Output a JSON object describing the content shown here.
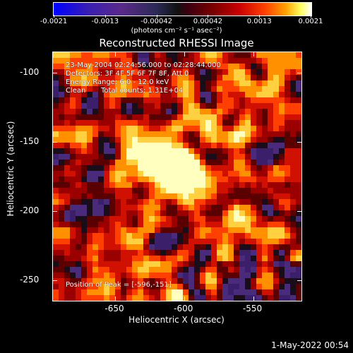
{
  "colorbar": {
    "ticks": [
      "-0.0021",
      "-0.0013",
      "-0.00042",
      "0.00042",
      "0.0013",
      "0.0021"
    ],
    "units_label": "(photons cm⁻² s⁻¹ asec⁻²)"
  },
  "title": "Reconstructed RHESSI Image",
  "annotations": {
    "time": "23-May-2004 02:24:56.000 to 02:28:44.000",
    "detectors": "Detectors: 3F 4F 5F 6F 7F 8F, Att 0",
    "energy": "Energy Range: 6.0 - 12.0 keV",
    "method": "Clean",
    "counts": "Total counts: 1.31E+04",
    "peak": "Position of Peak = [-596,-151]"
  },
  "axes": {
    "xlabel": "Heliocentric X (arcsec)",
    "ylabel": "Heliocentric Y (arcsec)",
    "xticks": [
      "-650",
      "-600",
      "-550"
    ],
    "yticks": [
      "-100",
      "-150",
      "-200",
      "-250"
    ],
    "xrange": [
      -695,
      -515
    ],
    "yrange": [
      -85,
      -265
    ]
  },
  "timestamp": "1-May-2022 00:54"
}
